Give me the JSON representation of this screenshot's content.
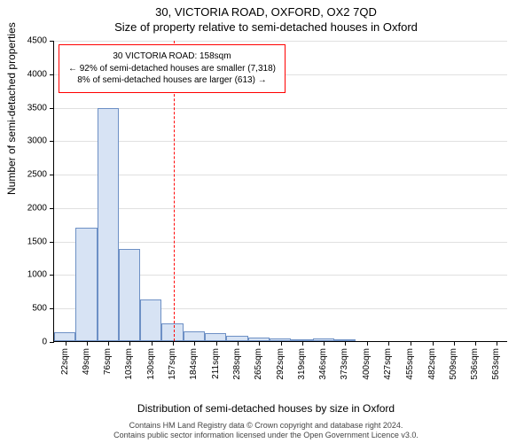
{
  "title": {
    "address": "30, VICTORIA ROAD, OXFORD, OX2 7QD",
    "subtitle": "Size of property relative to semi-detached houses in Oxford"
  },
  "chart": {
    "type": "histogram",
    "ylim": [
      0,
      4500
    ],
    "ytick_step": 500,
    "yticks": [
      0,
      500,
      1000,
      1500,
      2000,
      2500,
      3000,
      3500,
      4000,
      4500
    ],
    "xlim": [
      8,
      577
    ],
    "xticks": [
      22,
      49,
      76,
      103,
      130,
      157,
      184,
      211,
      238,
      265,
      292,
      319,
      346,
      373,
      400,
      427,
      455,
      482,
      509,
      536,
      563
    ],
    "xtick_unit": "sqm",
    "bars": [
      {
        "x_start": 8,
        "x_end": 35,
        "value": 130
      },
      {
        "x_start": 35,
        "x_end": 62,
        "value": 1700
      },
      {
        "x_start": 62,
        "x_end": 89,
        "value": 3480
      },
      {
        "x_start": 89,
        "x_end": 116,
        "value": 1380
      },
      {
        "x_start": 116,
        "x_end": 143,
        "value": 620
      },
      {
        "x_start": 143,
        "x_end": 170,
        "value": 260
      },
      {
        "x_start": 170,
        "x_end": 197,
        "value": 150
      },
      {
        "x_start": 197,
        "x_end": 224,
        "value": 120
      },
      {
        "x_start": 224,
        "x_end": 251,
        "value": 80
      },
      {
        "x_start": 251,
        "x_end": 278,
        "value": 50
      },
      {
        "x_start": 278,
        "x_end": 305,
        "value": 40
      },
      {
        "x_start": 305,
        "x_end": 332,
        "value": 30
      },
      {
        "x_start": 332,
        "x_end": 359,
        "value": 40
      },
      {
        "x_start": 359,
        "x_end": 386,
        "value": 15
      }
    ],
    "bar_fill": "#d7e3f4",
    "bar_stroke": "#6d90c5",
    "background_color": "#ffffff",
    "grid_color": "#e0e0e0",
    "marker": {
      "x": 158,
      "color": "#ff0000",
      "width": 1
    },
    "callout": {
      "border_color": "#ff0000",
      "line1": "30 VICTORIA ROAD: 158sqm",
      "line2": "← 92% of semi-detached houses are smaller (7,318)",
      "line3": "8% of semi-detached houses are larger (613) →"
    },
    "y_axis_title": "Number of semi-detached properties",
    "x_axis_title": "Distribution of semi-detached houses by size in Oxford",
    "axis_fontsize": 12,
    "tick_fontsize": 10
  },
  "footer": {
    "line1": "Contains HM Land Registry data © Crown copyright and database right 2024.",
    "line2": "Contains public sector information licensed under the Open Government Licence v3.0."
  }
}
